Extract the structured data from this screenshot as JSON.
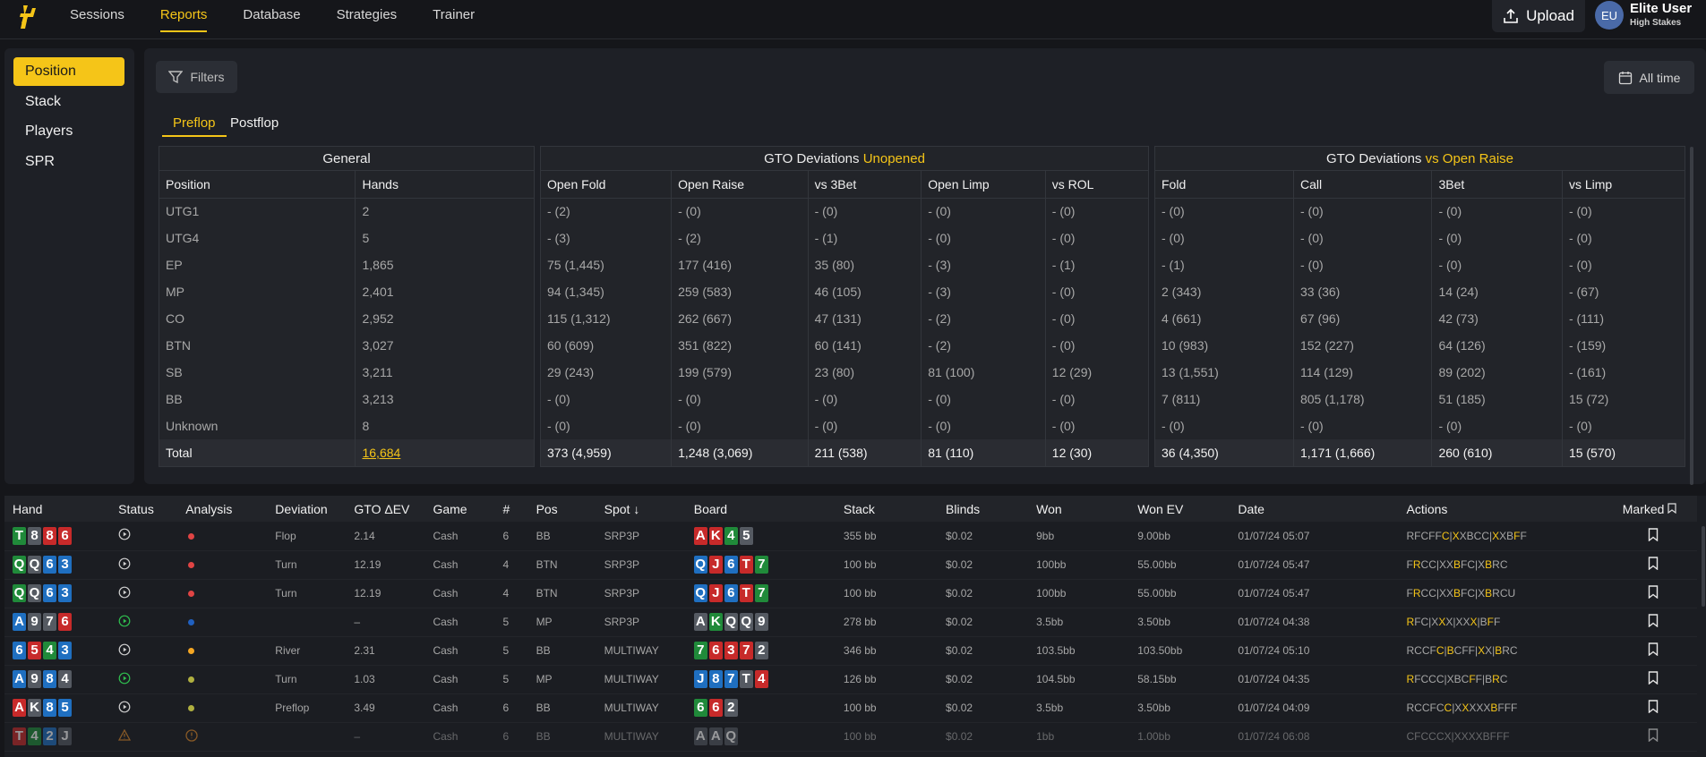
{
  "nav": {
    "items": [
      "Sessions",
      "Reports",
      "Database",
      "Strategies",
      "Trainer"
    ],
    "active": "Reports",
    "upload_label": "Upload",
    "user_initials": "EU",
    "user_name": "Elite User",
    "user_sub": "High Stakes"
  },
  "sidebar": {
    "items": [
      "Position",
      "Stack",
      "Players",
      "SPR"
    ],
    "active": "Position"
  },
  "toolbar": {
    "filters_label": "Filters",
    "date_range": "All time"
  },
  "subtabs": [
    "Preflop",
    "Postflop"
  ],
  "groups": {
    "general": {
      "title": "General",
      "columns": [
        "Position",
        "Hands"
      ]
    },
    "unopened": {
      "title_prefix": "GTO Deviations ",
      "title_highlight": "Unopened",
      "columns": [
        "Open Fold",
        "Open Raise",
        "vs 3Bet",
        "Open Limp",
        "vs ROL"
      ]
    },
    "vs_open": {
      "title_prefix": "GTO Deviations ",
      "title_highlight": "vs Open Raise",
      "columns": [
        "Fold",
        "Call",
        "3Bet",
        "vs Limp"
      ]
    }
  },
  "position_rows": [
    {
      "pos": "UTG1",
      "hands": "2",
      "u": [
        "- (2)",
        "- (0)",
        "- (0)",
        "- (0)",
        "- (0)"
      ],
      "v": [
        "- (0)",
        "- (0)",
        "- (0)",
        "- (0)"
      ]
    },
    {
      "pos": "UTG4",
      "hands": "5",
      "u": [
        "- (3)",
        "- (2)",
        "- (1)",
        "- (0)",
        "- (0)"
      ],
      "v": [
        "- (0)",
        "- (0)",
        "- (0)",
        "- (0)"
      ]
    },
    {
      "pos": "EP",
      "hands": "1,865",
      "u": [
        "75 (1,445)",
        "177 (416)",
        "35 (80)",
        "- (3)",
        "- (1)"
      ],
      "v": [
        "- (1)",
        "- (0)",
        "- (0)",
        "- (0)"
      ]
    },
    {
      "pos": "MP",
      "hands": "2,401",
      "u": [
        "94 (1,345)",
        "259 (583)",
        "46 (105)",
        "- (3)",
        "- (0)"
      ],
      "v": [
        "2 (343)",
        "33 (36)",
        "14 (24)",
        "- (67)"
      ]
    },
    {
      "pos": "CO",
      "hands": "2,952",
      "u": [
        "115 (1,312)",
        "262 (667)",
        "47 (131)",
        "- (2)",
        "- (0)"
      ],
      "v": [
        "4 (661)",
        "67 (96)",
        "42 (73)",
        "- (111)"
      ]
    },
    {
      "pos": "BTN",
      "hands": "3,027",
      "u": [
        "60 (609)",
        "351 (822)",
        "60 (141)",
        "- (2)",
        "- (0)"
      ],
      "v": [
        "10 (983)",
        "152 (227)",
        "64 (126)",
        "- (159)"
      ]
    },
    {
      "pos": "SB",
      "hands": "3,211",
      "u": [
        "29 (243)",
        "199 (579)",
        "23 (80)",
        "81 (100)",
        "12 (29)"
      ],
      "v": [
        "13 (1,551)",
        "114 (129)",
        "89 (202)",
        "- (161)"
      ]
    },
    {
      "pos": "BB",
      "hands": "3,213",
      "u": [
        "- (0)",
        "- (0)",
        "- (0)",
        "- (0)",
        "- (0)"
      ],
      "v": [
        "7 (811)",
        "805 (1,178)",
        "51 (185)",
        "15 (72)"
      ]
    },
    {
      "pos": "Unknown",
      "hands": "8",
      "u": [
        "- (0)",
        "- (0)",
        "- (0)",
        "- (0)",
        "- (0)"
      ],
      "v": [
        "- (0)",
        "- (0)",
        "- (0)",
        "- (0)"
      ]
    }
  ],
  "totals": {
    "pos": "Total",
    "hands": "16,684",
    "u": [
      "373 (4,959)",
      "1,248 (3,069)",
      "211 (538)",
      "81 (110)",
      "12 (30)"
    ],
    "v": [
      "36 (4,350)",
      "1,171 (1,666)",
      "260 (610)",
      "15 (570)"
    ]
  },
  "hands_table": {
    "columns": [
      "Hand",
      "Status",
      "Analysis",
      "Deviation",
      "GTO ΔEV",
      "Game",
      "#",
      "Pos",
      "Spot ↓",
      "Board",
      "Stack",
      "Blinds",
      "Won",
      "Won EV",
      "Date",
      "Actions",
      "Marked"
    ],
    "rows": [
      {
        "hand": [
          [
            "T",
            "c"
          ],
          [
            "8",
            "s"
          ],
          [
            "8",
            "h"
          ],
          [
            "6",
            "h"
          ]
        ],
        "status": "play",
        "dot": "#e04444",
        "deviation": "Flop",
        "ev": "2.14",
        "game": "Cash",
        "n": "6",
        "pos": "BB",
        "spot": "SRP3P",
        "board": [
          [
            "A",
            "h"
          ],
          [
            "K",
            "h"
          ],
          [
            "4",
            "c"
          ],
          [
            "5",
            "s"
          ]
        ],
        "stack": "355 bb",
        "blinds": "$0.02",
        "won": "9bb",
        "won_c": "red",
        "wonev": "9.00bb",
        "wonev_c": "red",
        "date": "01/07/24 05:07",
        "actions": [
          [
            "RFCFF",
            ""
          ],
          [
            "C",
            "b"
          ],
          [
            "|",
            ""
          ],
          [
            "X",
            "b"
          ],
          [
            "XBCC|",
            ""
          ],
          [
            "X",
            "b"
          ],
          [
            "XB",
            ""
          ],
          [
            "F",
            "b"
          ],
          [
            "F",
            ""
          ]
        ]
      },
      {
        "hand": [
          [
            "Q",
            "c"
          ],
          [
            "Q",
            "s"
          ],
          [
            "6",
            "d"
          ],
          [
            "3",
            "d"
          ]
        ],
        "status": "play",
        "dot": "#e04444",
        "deviation": "Turn",
        "ev": "12.19",
        "game": "Cash",
        "n": "4",
        "pos": "BTN",
        "spot": "SRP3P",
        "board": [
          [
            "Q",
            "d"
          ],
          [
            "J",
            "h"
          ],
          [
            "6",
            "d"
          ],
          [
            "T",
            "h"
          ],
          [
            "7",
            "c"
          ]
        ],
        "stack": "100 bb",
        "blinds": "$0.02",
        "won": "100bb",
        "won_c": "red",
        "wonev": "55.00bb",
        "wonev_c": "red",
        "date": "01/07/24 05:47",
        "actions": [
          [
            "F",
            ""
          ],
          [
            "R",
            "b"
          ],
          [
            "CC|XX",
            ""
          ],
          [
            "B",
            "b"
          ],
          [
            "FC|X",
            ""
          ],
          [
            "B",
            "b"
          ],
          [
            "RC",
            ""
          ]
        ]
      },
      {
        "hand": [
          [
            "Q",
            "c"
          ],
          [
            "Q",
            "s"
          ],
          [
            "6",
            "d"
          ],
          [
            "3",
            "d"
          ]
        ],
        "status": "play",
        "dot": "#e04444",
        "deviation": "Turn",
        "ev": "12.19",
        "game": "Cash",
        "n": "4",
        "pos": "BTN",
        "spot": "SRP3P",
        "board": [
          [
            "Q",
            "d"
          ],
          [
            "J",
            "h"
          ],
          [
            "6",
            "d"
          ],
          [
            "T",
            "h"
          ],
          [
            "7",
            "c"
          ]
        ],
        "stack": "100 bb",
        "blinds": "$0.02",
        "won": "100bb",
        "won_c": "red",
        "wonev": "55.00bb",
        "wonev_c": "red",
        "date": "01/07/24 05:47",
        "actions": [
          [
            "F",
            ""
          ],
          [
            "R",
            "b"
          ],
          [
            "CC|XX",
            ""
          ],
          [
            "B",
            "b"
          ],
          [
            "FC|X",
            ""
          ],
          [
            "B",
            "b"
          ],
          [
            "RCU",
            ""
          ]
        ]
      },
      {
        "hand": [
          [
            "A",
            "d"
          ],
          [
            "9",
            "s"
          ],
          [
            "7",
            "s"
          ],
          [
            "6",
            "h"
          ]
        ],
        "status": "playgreen",
        "dot": "#2060c0",
        "deviation": "",
        "ev": "–",
        "game": "Cash",
        "n": "5",
        "pos": "MP",
        "spot": "SRP3P",
        "board": [
          [
            "A",
            "s"
          ],
          [
            "K",
            "c"
          ],
          [
            "Q",
            "s"
          ],
          [
            "Q",
            "s"
          ],
          [
            "9",
            "s"
          ]
        ],
        "stack": "278 bb",
        "blinds": "$0.02",
        "won": "3.5bb",
        "won_c": "red",
        "wonev": "3.50bb",
        "wonev_c": "red",
        "date": "01/07/24 04:38",
        "actions": [
          [
            "R",
            "b"
          ],
          [
            "FC|X",
            ""
          ],
          [
            "X",
            "b"
          ],
          [
            "X|XX",
            ""
          ],
          [
            "X",
            "b"
          ],
          [
            "|B",
            ""
          ],
          [
            "F",
            "b"
          ],
          [
            "F",
            ""
          ]
        ]
      },
      {
        "hand": [
          [
            "6",
            "d"
          ],
          [
            "5",
            "h"
          ],
          [
            "4",
            "c"
          ],
          [
            "3",
            "d"
          ]
        ],
        "status": "play",
        "dot": "#f5a623",
        "deviation": "River",
        "ev": "2.31",
        "game": "Cash",
        "n": "5",
        "pos": "BB",
        "spot": "MULTIWAY",
        "board": [
          [
            "7",
            "c"
          ],
          [
            "6",
            "h"
          ],
          [
            "3",
            "h"
          ],
          [
            "7",
            "h"
          ],
          [
            "2",
            "s"
          ]
        ],
        "stack": "346 bb",
        "blinds": "$0.02",
        "won": "103.5bb",
        "won_c": "green",
        "wonev": "103.50bb",
        "wonev_c": "green",
        "date": "01/07/24 05:10",
        "actions": [
          [
            "RCCF",
            ""
          ],
          [
            "C",
            "b"
          ],
          [
            "|",
            ""
          ],
          [
            "B",
            "b"
          ],
          [
            "CFF|",
            ""
          ],
          [
            "X",
            "b"
          ],
          [
            "X|",
            ""
          ],
          [
            "B",
            "b"
          ],
          [
            "RC",
            ""
          ]
        ]
      },
      {
        "hand": [
          [
            "A",
            "d"
          ],
          [
            "9",
            "s"
          ],
          [
            "8",
            "d"
          ],
          [
            "4",
            "s"
          ]
        ],
        "status": "playgreen",
        "dot": "#b0b040",
        "deviation": "Turn",
        "ev": "1.03",
        "game": "Cash",
        "n": "5",
        "pos": "MP",
        "spot": "MULTIWAY",
        "board": [
          [
            "J",
            "d"
          ],
          [
            "8",
            "d"
          ],
          [
            "7",
            "d"
          ],
          [
            "T",
            "s"
          ],
          [
            "4",
            "h"
          ]
        ],
        "stack": "126 bb",
        "blinds": "$0.02",
        "won": "104.5bb",
        "won_c": "green",
        "wonev": "58.15bb",
        "wonev_c": "green",
        "date": "01/07/24 04:35",
        "actions": [
          [
            "R",
            "b"
          ],
          [
            "FCCC|XBC",
            ""
          ],
          [
            "F",
            "b"
          ],
          [
            "F|B",
            ""
          ],
          [
            "R",
            "b"
          ],
          [
            "C",
            ""
          ]
        ]
      },
      {
        "hand": [
          [
            "A",
            "h"
          ],
          [
            "K",
            "s"
          ],
          [
            "8",
            "d"
          ],
          [
            "5",
            "d"
          ]
        ],
        "status": "play",
        "dot": "#b0b040",
        "deviation": "Preflop",
        "ev": "3.49",
        "game": "Cash",
        "n": "6",
        "pos": "BB",
        "spot": "MULTIWAY",
        "board": [
          [
            "6",
            "c"
          ],
          [
            "6",
            "h"
          ],
          [
            "2",
            "s"
          ]
        ],
        "stack": "100 bb",
        "blinds": "$0.02",
        "won": "3.5bb",
        "won_c": "red",
        "wonev": "3.50bb",
        "wonev_c": "red",
        "date": "01/07/24 04:09",
        "actions": [
          [
            "RCCFC",
            ""
          ],
          [
            "C",
            "b"
          ],
          [
            "|X",
            ""
          ],
          [
            "X",
            "b"
          ],
          [
            "XXX",
            ""
          ],
          [
            "B",
            "b"
          ],
          [
            "FFF",
            ""
          ]
        ]
      },
      {
        "hand": [
          [
            "T",
            "h"
          ],
          [
            "4",
            "c"
          ],
          [
            "2",
            "d"
          ],
          [
            "J",
            "s"
          ]
        ],
        "status": "warn",
        "dot": "warn",
        "deviation": "",
        "ev": "–",
        "game": "Cash",
        "n": "6",
        "pos": "BB",
        "spot": "MULTIWAY",
        "board": [
          [
            "A",
            "s"
          ],
          [
            "A",
            "s"
          ],
          [
            "Q",
            "s"
          ]
        ],
        "stack": "100 bb",
        "blinds": "$0.02",
        "won": "1bb",
        "won_c": "red",
        "wonev": "1.00bb",
        "wonev_c": "red",
        "date": "01/07/24 06:08",
        "actions": [
          [
            "CFCCCX|XXXXBFFF",
            ""
          ]
        ]
      }
    ]
  }
}
